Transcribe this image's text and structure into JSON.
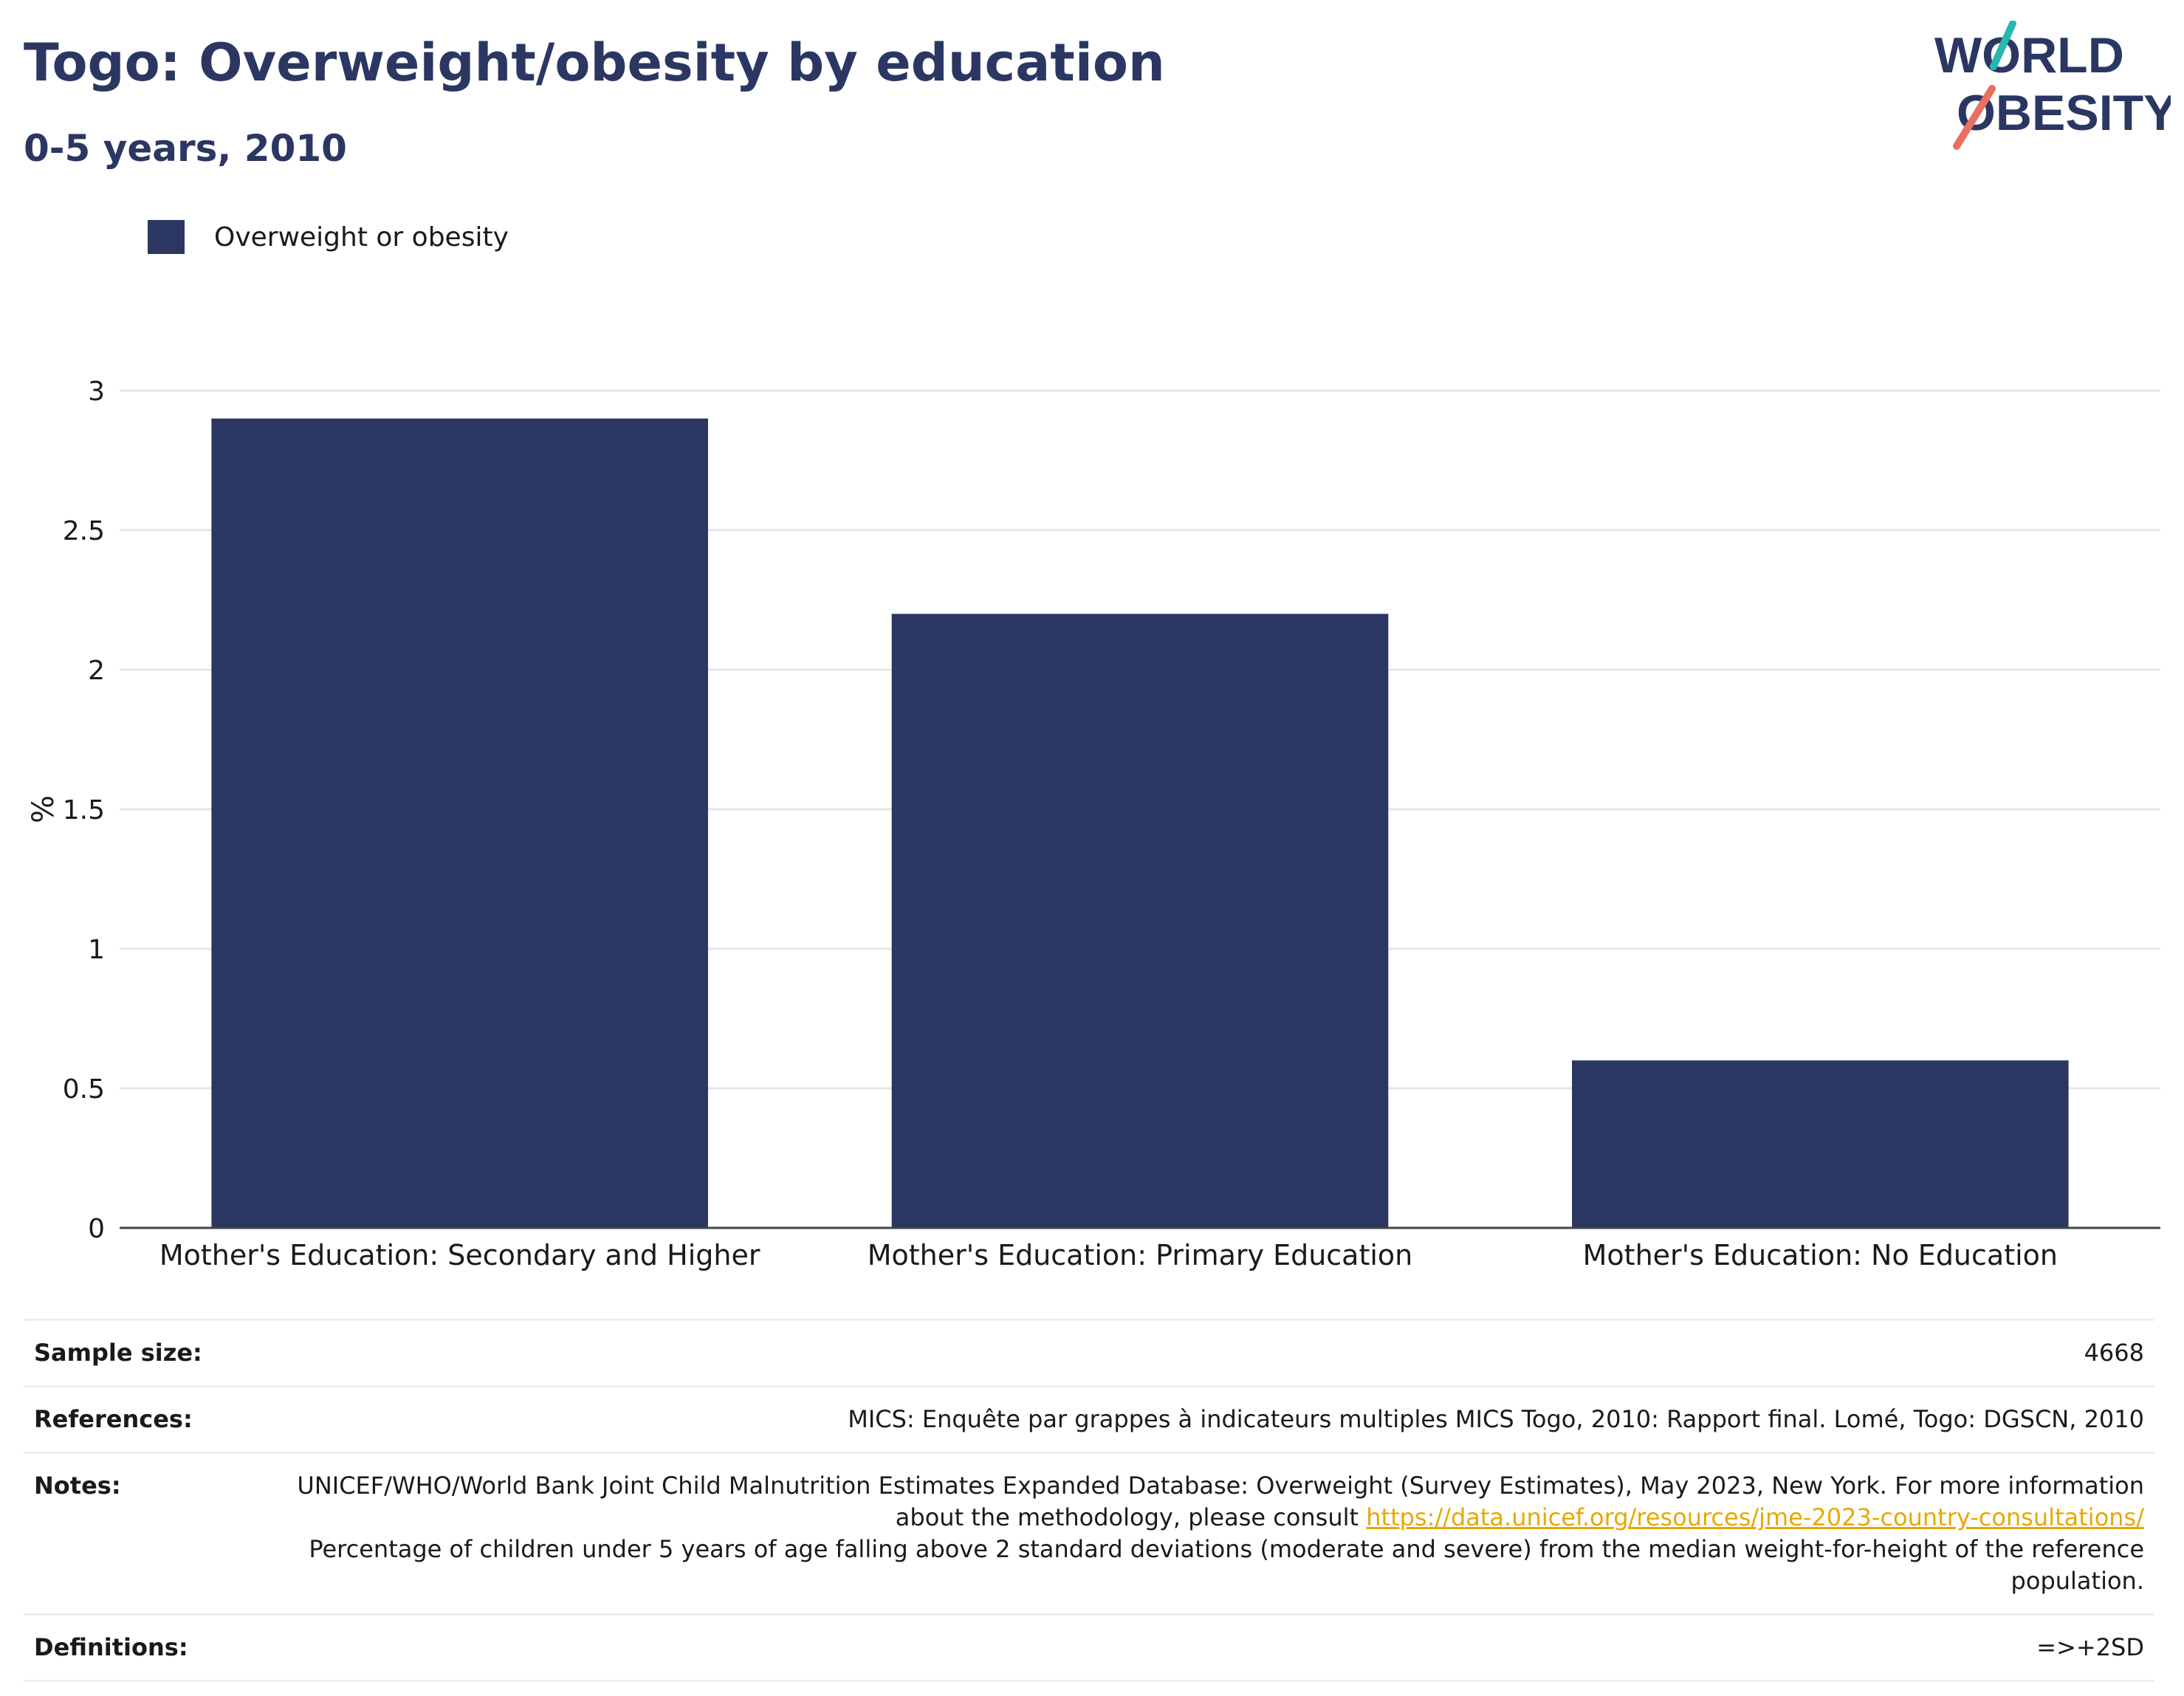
{
  "title": "Togo: Overweight/obesity by education",
  "subtitle": "0-5 years, 2010",
  "logo": {
    "line1": "WORLD",
    "line2": "OBESITY",
    "text_color": "#2b3762",
    "accent_top": "#2ab7b1",
    "accent_bottom": "#e8705f"
  },
  "legend": {
    "label": "Overweight or obesity",
    "color": "#2b3762"
  },
  "chart_data": {
    "type": "bar",
    "categories": [
      "Mother's Education: Secondary and Higher",
      "Mother's Education: Primary Education",
      "Mother's Education: No Education"
    ],
    "series": [
      {
        "name": "Overweight or obesity",
        "values": [
          2.9,
          2.2,
          0.6
        ]
      }
    ],
    "ylabel": "%",
    "ylim": [
      0,
      3
    ],
    "yticks": [
      0,
      0.5,
      1,
      1.5,
      2,
      2.5,
      3
    ],
    "ytick_labels": [
      "0",
      "0.5",
      "1",
      "1.5",
      "2",
      "2.5",
      "3"
    ],
    "grid": true,
    "bar_color": "#2b3762",
    "legend_position": "top-left"
  },
  "info": {
    "sample_size_label": "Sample size:",
    "sample_size_value": "4668",
    "references_label": "References:",
    "references_value": "MICS: Enquête par grappes à indicateurs multiples MICS Togo, 2010: Rapport final. Lomé, Togo: DGSCN, 2010",
    "notes_label": "Notes:",
    "notes_text_1": "UNICEF/WHO/World Bank Joint Child Malnutrition Estimates Expanded Database: Overweight (Survey Estimates), May 2023, New York. For more information about the methodology, please consult ",
    "notes_link": "https://data.unicef.org/resources/jme-2023-country-consultations/",
    "notes_text_2": "Percentage of children under 5 years of age falling above 2 standard deviations (moderate and severe) from the median weight-for-height of the reference population.",
    "definitions_label": "Definitions:",
    "definitions_value": "=>+2SD"
  }
}
